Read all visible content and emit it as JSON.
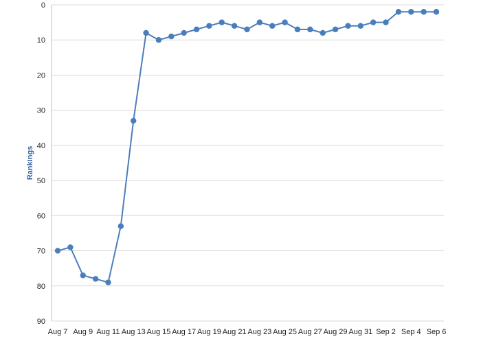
{
  "chart_data": {
    "type": "line",
    "title": "",
    "xlabel": "",
    "ylabel": "Rankings",
    "y_axis_inverted": true,
    "ylim": [
      0,
      90
    ],
    "y_ticks": [
      0,
      10,
      20,
      30,
      40,
      50,
      60,
      70,
      80,
      90
    ],
    "grid": true,
    "legend": "none",
    "x_tick_labels": [
      "Aug 7",
      "Aug 9",
      "Aug 11",
      "Aug 13",
      "Aug 15",
      "Aug 17",
      "Aug 19",
      "Aug 21",
      "Aug 23",
      "Aug 25",
      "Aug 27",
      "Aug 29",
      "Aug 31",
      "Sep 2",
      "Sep 4",
      "Sep 6"
    ],
    "x": [
      "Aug 7",
      "Aug 8",
      "Aug 9",
      "Aug 10",
      "Aug 11",
      "Aug 12",
      "Aug 13",
      "Aug 14",
      "Aug 15",
      "Aug 16",
      "Aug 17",
      "Aug 18",
      "Aug 19",
      "Aug 20",
      "Aug 21",
      "Aug 22",
      "Aug 23",
      "Aug 24",
      "Aug 25",
      "Aug 26",
      "Aug 27",
      "Aug 28",
      "Aug 29",
      "Aug 30",
      "Aug 31",
      "Sep 1",
      "Sep 2",
      "Sep 3",
      "Sep 4",
      "Sep 5",
      "Sep 6"
    ],
    "series": [
      {
        "values": [
          70,
          69,
          77,
          78,
          79,
          63,
          33,
          8,
          10,
          9,
          8,
          7,
          6,
          5,
          6,
          7,
          5,
          6,
          5,
          7,
          7,
          8,
          7,
          6,
          6,
          5,
          5,
          2,
          2,
          2,
          2
        ]
      }
    ],
    "colors": {
      "line": "#4a7ebb",
      "marker": "#4a7ebb",
      "grid": "#d9d9d9",
      "axis_title": "#2e5f99"
    }
  }
}
